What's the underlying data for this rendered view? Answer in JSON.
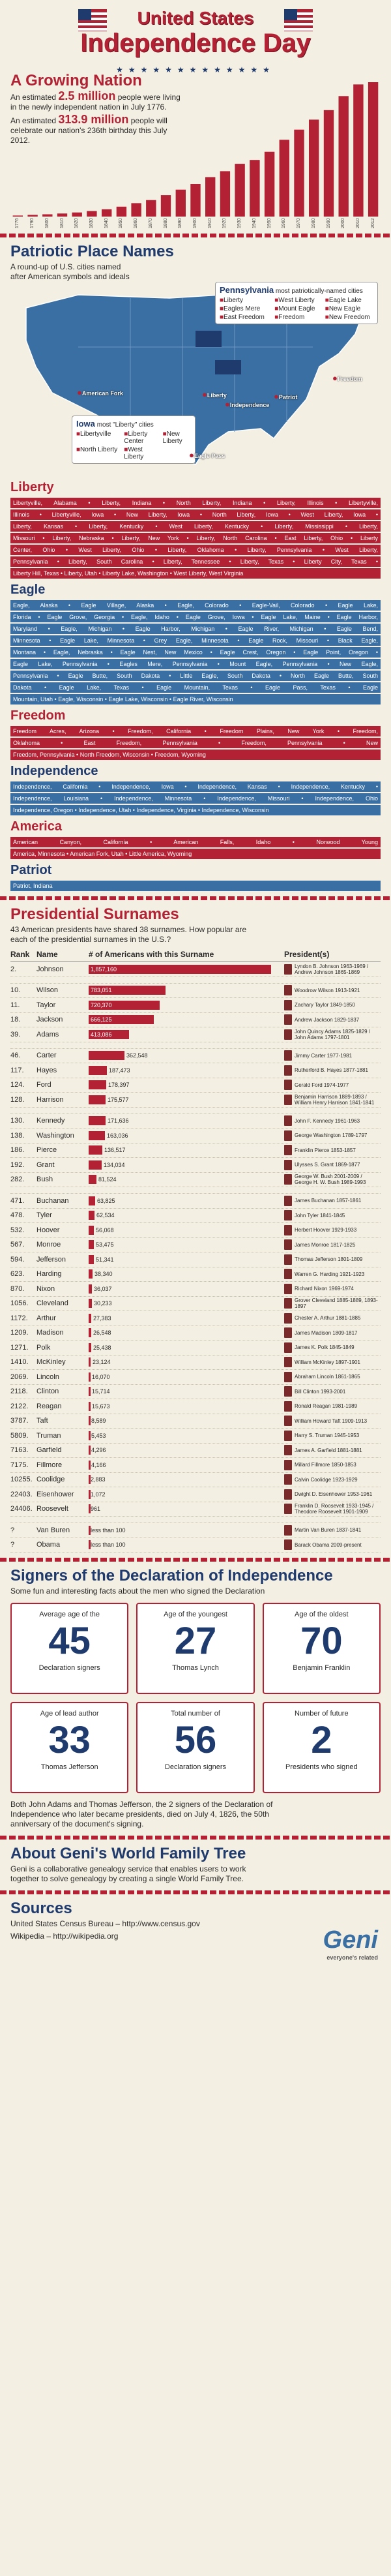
{
  "header": {
    "title_line1": "United States",
    "title_line2": "Independence Day"
  },
  "growth": {
    "title": "A Growing Nation",
    "p1_pre": "An estimated ",
    "p1_hl": "2.5 million",
    "p1_post": " people were living in the newly independent nation in July 1776.",
    "p2_pre": "An estimated ",
    "p2_hl": "313.9 million",
    "p2_post": " people will celebrate our nation's 236th birthday this July 2012."
  },
  "chart_data": {
    "type": "bar",
    "title": "",
    "xlabel": "",
    "ylabel": "",
    "categories": [
      "1776",
      "1790",
      "1800",
      "1810",
      "1820",
      "1830",
      "1840",
      "1850",
      "1860",
      "1870",
      "1880",
      "1890",
      "1900",
      "1910",
      "1920",
      "1930",
      "1940",
      "1950",
      "1960",
      "1970",
      "1980",
      "1990",
      "2000",
      "2010",
      "2012"
    ],
    "values": [
      2.5,
      3.9,
      5.3,
      7.2,
      9.6,
      12.9,
      17.1,
      23.2,
      31.4,
      38.6,
      50.2,
      63.0,
      76.2,
      92.2,
      106.0,
      123.2,
      132.2,
      151.3,
      179.3,
      203.2,
      226.5,
      248.7,
      281.4,
      308.7,
      313.9
    ],
    "ylim": [
      0,
      320
    ]
  },
  "places": {
    "title": "Patriotic Place Names",
    "subtitle": "A round-up of U.S. cities named after American symbols and ideals",
    "penn_title": "Pennsylvania",
    "penn_sub": "most patriotically-named cities",
    "penn_items": [
      "Liberty",
      "West Liberty",
      "Eagle Lake",
      "Eagles Mere",
      "Mount Eagle",
      "New Eagle",
      "East Freedom",
      "Freedom",
      "New Freedom"
    ],
    "iowa_title": "Iowa",
    "iowa_sub": "most \"Liberty\" cities",
    "iowa_items": [
      "Libertyville",
      "Liberty Center",
      "New Liberty",
      "North Liberty",
      "West Liberty"
    ],
    "pins": [
      "American Fork",
      "Liberty",
      "Independence",
      "Patriot",
      "Freedom",
      "Eagle Pass"
    ]
  },
  "categories": [
    {
      "title": "Liberty",
      "color": "red",
      "lines": [
        "Libertyville, Alabama • Liberty, Indiana • North Liberty, Indiana • Liberty, Illinois • Libertyville,",
        "Illinois • Libertyville, Iowa • New Liberty, Iowa • North Liberty, Iowa • West Liberty, Iowa •",
        "Liberty, Kansas • Liberty, Kentucky • West Liberty, Kentucky • Liberty, Mississippi • Liberty,",
        "Missouri • Liberty, Nebraska • Liberty, New York • Liberty, North Carolina • East Liberty, Ohio • Liberty",
        "Center, Ohio • West Liberty, Ohio • Liberty, Oklahoma • Liberty, Pennsylvania • West Liberty,",
        "Pennsylvania • Liberty, South Carolina • Liberty, Tennessee • Liberty, Texas • Liberty City, Texas •",
        "Liberty Hill, Texas • Liberty, Utah • Liberty Lake, Washington • West Liberty, West Virginia"
      ]
    },
    {
      "title": "Eagle",
      "color": "blue",
      "lines": [
        "Eagle, Alaska • Eagle Village, Alaska • Eagle, Colorado • Eagle-Vail, Colorado • Eagle Lake,",
        "Florida • Eagle Grove, Georgia • Eagle, Idaho • Eagle Grove, Iowa • Eagle Lake, Maine • Eagle Harbor,",
        "Maryland • Eagle, Michigan • Eagle Harbor, Michigan • Eagle River, Michigan • Eagle Bend,",
        "Minnesota • Eagle Lake, Minnesota • Grey Eagle, Minnesota • Eagle Rock, Missouri • Black Eagle,",
        "Montana • Eagle, Nebraska • Eagle Nest, New Mexico • Eagle Crest, Oregon • Eagle Point, Oregon •",
        "Eagle Lake, Pennsylvania • Eagles Mere, Pennsylvania • Mount Eagle, Pennsylvania • New Eagle,",
        "Pennsylvania • Eagle Butte, South Dakota • Little Eagle, South Dakota • North Eagle Butte, South",
        "Dakota • Eagle Lake, Texas • Eagle Mountain, Texas • Eagle Pass, Texas • Eagle",
        "Mountain, Utah • Eagle, Wisconsin • Eagle Lake, Wisconsin • Eagle River, Wisconsin"
      ]
    },
    {
      "title": "Freedom",
      "color": "red",
      "lines": [
        "Freedom Acres, Arizona • Freedom, California • Freedom Plains, New York • Freedom,",
        "Oklahoma • East Freedom, Pennsylvania • Freedom, Pennsylvania • New",
        "Freedom, Pennsylvania • North Freedom, Wisconsin • Freedom, Wyoming"
      ]
    },
    {
      "title": "Independence",
      "color": "blue",
      "lines": [
        "Independence, California • Independence, Iowa • Independence, Kansas • Independence, Kentucky •",
        "Independence, Louisiana • Independence, Minnesota • Independence, Missouri • Independence, Ohio",
        "Independence, Oregon • Independence, Utah • Independence, Virginia • Independence, Wisconsin"
      ]
    },
    {
      "title": "America",
      "color": "red",
      "lines": [
        "American Canyon, California • American Falls, Idaho • Norwood Young",
        "America, Minnesota • American Fork, Utah • Little America, Wyoming"
      ]
    },
    {
      "title": "Patriot",
      "color": "blue",
      "lines": [
        "Patriot, Indiana"
      ]
    }
  ],
  "surnames": {
    "title": "Presidential Surnames",
    "subtitle": "43 American presidents have shared 38 surnames. How popular are each of the presidential surnames in the U.S.?",
    "col_rank": "Rank",
    "col_name": "Name",
    "col_count": "# of Americans with this Surname",
    "col_pres": "President(s)",
    "max": 1857160,
    "groups": [
      [
        {
          "rank": "2.",
          "name": "Johnson",
          "count": 1857160,
          "label": "1,857,160",
          "pres": "Lyndon B. Johnson 1963-1969 / Andrew Johnson 1865-1869"
        }
      ],
      [
        {
          "rank": "10.",
          "name": "Wilson",
          "count": 783051,
          "label": "783,051",
          "pres": "Woodrow Wilson 1913-1921"
        },
        {
          "rank": "11.",
          "name": "Taylor",
          "count": 720370,
          "label": "720,370",
          "pres": "Zachary Taylor 1849-1850"
        },
        {
          "rank": "18.",
          "name": "Jackson",
          "count": 666125,
          "label": "666,125",
          "pres": "Andrew Jackson 1829-1837"
        },
        {
          "rank": "39.",
          "name": "Adams",
          "count": 413086,
          "label": "413,086",
          "pres": "John Quincy Adams 1825-1829 / John Adams 1797-1801"
        }
      ],
      [
        {
          "rank": "46.",
          "name": "Carter",
          "count": 362548,
          "label": "362,548",
          "pres": "Jimmy Carter 1977-1981"
        },
        {
          "rank": "117.",
          "name": "Hayes",
          "count": 187473,
          "label": "187,473",
          "pres": "Rutherford B. Hayes 1877-1881"
        },
        {
          "rank": "124.",
          "name": "Ford",
          "count": 178397,
          "label": "178,397",
          "pres": "Gerald Ford 1974-1977"
        },
        {
          "rank": "128.",
          "name": "Harrison",
          "count": 175577,
          "label": "175,577",
          "pres": "Benjamin Harrison 1889-1893 / William Henry Harrison 1841-1841"
        }
      ],
      [
        {
          "rank": "130.",
          "name": "Kennedy",
          "count": 171636,
          "label": "171,636",
          "pres": "John F. Kennedy 1961-1963"
        },
        {
          "rank": "138.",
          "name": "Washington",
          "count": 163036,
          "label": "163,036",
          "pres": "George Washington 1789-1797"
        },
        {
          "rank": "186.",
          "name": "Pierce",
          "count": 136517,
          "label": "136,517",
          "pres": "Franklin Pierce 1853-1857"
        },
        {
          "rank": "192.",
          "name": "Grant",
          "count": 134034,
          "label": "134,034",
          "pres": "Ulysses S. Grant 1869-1877"
        },
        {
          "rank": "282.",
          "name": "Bush",
          "count": 81524,
          "label": "81,524",
          "pres": "George W. Bush 2001-2009 / George H. W. Bush 1989-1993"
        }
      ],
      [
        {
          "rank": "471.",
          "name": "Buchanan",
          "count": 63825,
          "label": "63,825",
          "pres": "James Buchanan 1857-1861"
        },
        {
          "rank": "478.",
          "name": "Tyler",
          "count": 62534,
          "label": "62,534",
          "pres": "John Tyler 1841-1845"
        },
        {
          "rank": "532.",
          "name": "Hoover",
          "count": 56068,
          "label": "56,068",
          "pres": "Herbert Hoover 1929-1933"
        },
        {
          "rank": "567.",
          "name": "Monroe",
          "count": 53475,
          "label": "53,475",
          "pres": "James Monroe 1817-1825"
        },
        {
          "rank": "594.",
          "name": "Jefferson",
          "count": 51341,
          "label": "51,341",
          "pres": "Thomas Jefferson 1801-1809"
        },
        {
          "rank": "623.",
          "name": "Harding",
          "count": 38340,
          "label": "38,340",
          "pres": "Warren G. Harding 1921-1923"
        },
        {
          "rank": "870.",
          "name": "Nixon",
          "count": 36037,
          "label": "36,037",
          "pres": "Richard Nixon 1969-1974"
        },
        {
          "rank": "1056.",
          "name": "Cleveland",
          "count": 30233,
          "label": "30,233",
          "pres": "Grover Cleveland 1885-1889, 1893-1897"
        },
        {
          "rank": "1172.",
          "name": "Arthur",
          "count": 27383,
          "label": "27,383",
          "pres": "Chester A. Arthur 1881-1885"
        },
        {
          "rank": "1209.",
          "name": "Madison",
          "count": 26548,
          "label": "26,548",
          "pres": "James Madison 1809-1817"
        },
        {
          "rank": "1271.",
          "name": "Polk",
          "count": 25438,
          "label": "25,438",
          "pres": "James K. Polk 1845-1849"
        },
        {
          "rank": "1410.",
          "name": "McKinley",
          "count": 23124,
          "label": "23,124",
          "pres": "William McKinley 1897-1901"
        },
        {
          "rank": "2069.",
          "name": "Lincoln",
          "count": 16070,
          "label": "16,070",
          "pres": "Abraham Lincoln 1861-1865"
        },
        {
          "rank": "2118.",
          "name": "Clinton",
          "count": 15714,
          "label": "15,714",
          "pres": "Bill Clinton 1993-2001"
        },
        {
          "rank": "2122.",
          "name": "Reagan",
          "count": 15673,
          "label": "15,673",
          "pres": "Ronald Reagan 1981-1989"
        },
        {
          "rank": "3787.",
          "name": "Taft",
          "count": 8589,
          "label": "8,589",
          "pres": "William Howard Taft 1909-1913"
        },
        {
          "rank": "5809.",
          "name": "Truman",
          "count": 5453,
          "label": "5,453",
          "pres": "Harry S. Truman 1945-1953"
        },
        {
          "rank": "7163.",
          "name": "Garfield",
          "count": 4296,
          "label": "4,296",
          "pres": "James A. Garfield 1881-1881"
        },
        {
          "rank": "7175.",
          "name": "Fillmore",
          "count": 4166,
          "label": "4,166",
          "pres": "Millard Fillmore 1850-1853"
        },
        {
          "rank": "10255.",
          "name": "Coolidge",
          "count": 2883,
          "label": "2,883",
          "pres": "Calvin Coolidge 1923-1929"
        },
        {
          "rank": "22403.",
          "name": "Eisenhower",
          "count": 1072,
          "label": "1,072",
          "pres": "Dwight D. Eisenhower 1953-1961"
        },
        {
          "rank": "24406.",
          "name": "Roosevelt",
          "count": 961,
          "label": "961",
          "pres": "Franklin D. Roosevelt 1933-1945 / Theodore Roosevelt 1901-1909"
        }
      ],
      [
        {
          "rank": "?",
          "name": "Van Buren",
          "count": 0,
          "label": "less than 100",
          "pres": "Martin Van Buren 1837-1841"
        },
        {
          "rank": "?",
          "name": "Obama",
          "count": 0,
          "label": "less than 100",
          "pres": "Barack Obama 2009-present"
        }
      ]
    ]
  },
  "signers": {
    "title": "Signers of the Declaration of Independence",
    "subtitle": "Some fun and interesting facts about the men who signed the Declaration",
    "cards": [
      {
        "label": "Average age of the",
        "number": "45",
        "sub": "Declaration signers"
      },
      {
        "label": "Age of the youngest",
        "number": "27",
        "sub": "Thomas Lynch"
      },
      {
        "label": "Age of the oldest",
        "number": "70",
        "sub": "Benjamin Franklin"
      },
      {
        "label": "Age of lead author",
        "number": "33",
        "sub": "Thomas Jefferson"
      },
      {
        "label": "Total number of",
        "number": "56",
        "sub": "Declaration signers"
      },
      {
        "label": "Number of future",
        "number": "2",
        "sub": "Presidents who signed"
      }
    ],
    "note": "Both John Adams and Thomas Jefferson, the 2 signers of the Declaration of Independence who later became presidents, died on July 4, 1826, the 50th anniversary of the document's signing."
  },
  "about": {
    "title": "About Geni's World Family Tree",
    "text": "Geni is a collaborative genealogy service that enables users to work together to solve genealogy by creating a single World Family Tree."
  },
  "sources": {
    "title": "Sources",
    "lines": [
      "United States Census Bureau – http://www.census.gov",
      "Wikipedia – http://wikipedia.org"
    ]
  },
  "logo": {
    "name": "Geni",
    "tag": "everyone's related"
  },
  "colors": {
    "red": "#b22234",
    "blue": "#1f3b6e",
    "strip_blue": "#3a6fa3",
    "background": "#f4efe3"
  }
}
